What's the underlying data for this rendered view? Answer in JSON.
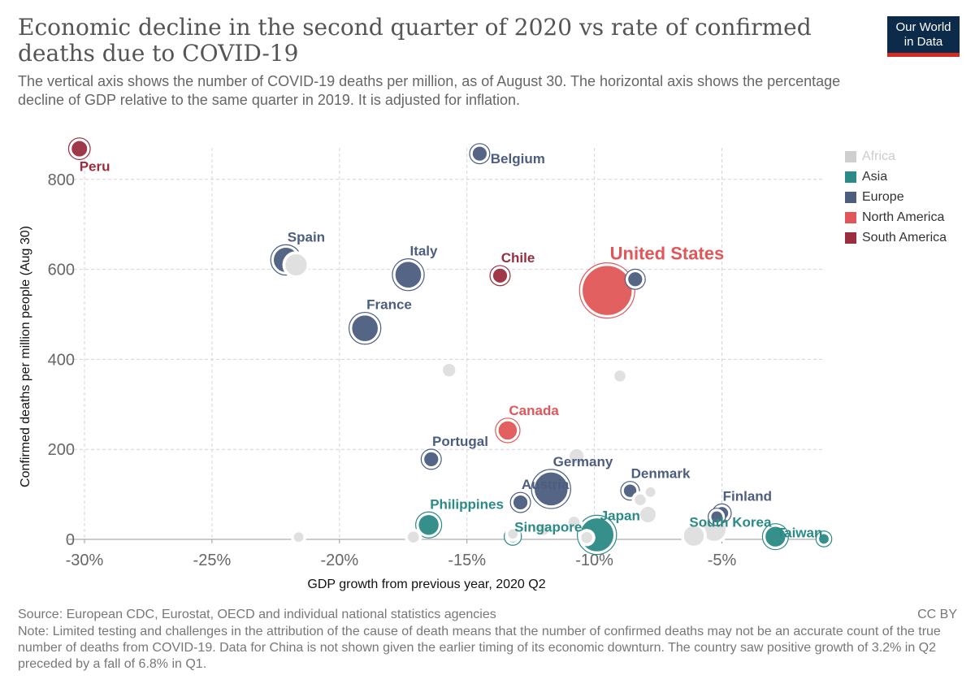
{
  "header": {
    "title": "Economic decline in the second quarter of 2020 vs rate of confirmed deaths due to COVID-19",
    "subtitle": "The vertical axis shows the number of COVID-19 deaths per million, as of August 30. The horizontal axis shows the percentage decline of GDP relative to the same quarter in 2019. It is adjusted for inflation.",
    "logo_line1": "Our World",
    "logo_line2": "in Data"
  },
  "footer": {
    "source": "Source: European CDC, Eurostat, OECD and individual national statistics agencies",
    "license": "CC BY",
    "note": "Note: Limited testing and challenges in the attribution of the cause of death means that the number of confirmed deaths may not be an accurate count of the true number of deaths from COVID-19. Data for China is not shown given the earlier timing of its economic downturn. The country saw positive growth of 3.2% in Q2 preceded by a fall of 6.8% in Q1."
  },
  "chart_data": {
    "type": "scatter",
    "xlabel": "GDP growth from previous year, 2020 Q2",
    "ylabel": "Confirmed deaths per million people (Aug 30)",
    "xlim": [
      -30.8,
      -1
    ],
    "ylim": [
      0,
      870
    ],
    "x_ticks": [
      -30,
      -25,
      -20,
      -15,
      -10,
      -5
    ],
    "x_tick_labels": [
      "-30%",
      "-25%",
      "-20%",
      "-15%",
      "-10%",
      "-5%"
    ],
    "y_ticks": [
      0,
      200,
      400,
      600,
      800
    ],
    "y_tick_labels": [
      "0",
      "200",
      "400",
      "600",
      "800"
    ],
    "grid": true,
    "legend_position": "right",
    "legend": [
      {
        "name": "Africa",
        "color": "#cfcfcf",
        "dimmed": true
      },
      {
        "name": "Asia",
        "color": "#2a8a85"
      },
      {
        "name": "Europe",
        "color": "#4c5d7e"
      },
      {
        "name": "North America",
        "color": "#e15759"
      },
      {
        "name": "South America",
        "color": "#9a2d3e"
      }
    ],
    "points": [
      {
        "label": "",
        "region": "Other",
        "x": -21.7,
        "y": 610,
        "size": 1.1
      },
      {
        "label": "",
        "region": "Other",
        "x": -15.7,
        "y": 376,
        "size": 0.5
      },
      {
        "label": "",
        "region": "Other",
        "x": -9.0,
        "y": 363,
        "size": 0.4
      },
      {
        "label": "",
        "region": "Other",
        "x": -10.7,
        "y": 185,
        "size": 0.6
      },
      {
        "label": "",
        "region": "Other",
        "x": -21.6,
        "y": 5,
        "size": 0.3
      },
      {
        "label": "",
        "region": "Other",
        "x": -17.1,
        "y": 5,
        "size": 0.4
      },
      {
        "label": "",
        "region": "Other",
        "x": -12.0,
        "y": 22,
        "size": 0.4
      },
      {
        "label": "",
        "region": "Other",
        "x": -10.8,
        "y": 38,
        "size": 0.4
      },
      {
        "label": "",
        "region": "Other",
        "x": -8.2,
        "y": 88,
        "size": 0.4
      },
      {
        "label": "",
        "region": "Other",
        "x": -7.8,
        "y": 105,
        "size": 0.3
      },
      {
        "label": "",
        "region": "Other",
        "x": -7.9,
        "y": 55,
        "size": 0.7
      },
      {
        "label": "",
        "region": "Other",
        "x": -6.1,
        "y": 8,
        "size": 1.0
      },
      {
        "label": "",
        "region": "Other",
        "x": -5.3,
        "y": 22,
        "size": 1.2
      },
      {
        "label": "",
        "region": "Other",
        "x": -13.2,
        "y": 12,
        "size": 0.3
      },
      {
        "label": "",
        "region": "Other",
        "x": -10.3,
        "y": 4,
        "size": 0.4
      },
      {
        "label": "Peru",
        "region": "South America",
        "x": -30.2,
        "y": 868,
        "size": 0.7
      },
      {
        "label": "Belgium",
        "region": "Europe",
        "x": -14.5,
        "y": 857,
        "size": 0.6
      },
      {
        "label": "Spain",
        "region": "Europe",
        "x": -22.1,
        "y": 621,
        "size": 1.3
      },
      {
        "label": "Italy",
        "region": "Europe",
        "x": -17.3,
        "y": 588,
        "size": 1.4
      },
      {
        "label": "Chile",
        "region": "South America",
        "x": -13.7,
        "y": 586,
        "size": 0.6
      },
      {
        "label": "United States",
        "region": "North America",
        "x": -9.5,
        "y": 553,
        "size": 3.0
      },
      {
        "label": "",
        "region": "Europe",
        "x": -8.4,
        "y": 578,
        "size": 0.6
      },
      {
        "label": "France",
        "region": "Europe",
        "x": -19.0,
        "y": 469,
        "size": 1.4
      },
      {
        "label": "Canada",
        "region": "North America",
        "x": -13.4,
        "y": 242,
        "size": 0.9
      },
      {
        "label": "Portugal",
        "region": "Europe",
        "x": -16.4,
        "y": 178,
        "size": 0.6
      },
      {
        "label": "Germany",
        "region": "Europe",
        "x": -11.7,
        "y": 112,
        "size": 1.9
      },
      {
        "label": "Austria",
        "region": "Europe",
        "x": -12.9,
        "y": 82,
        "size": 0.6
      },
      {
        "label": "Denmark",
        "region": "Europe",
        "x": -8.6,
        "y": 108,
        "size": 0.5
      },
      {
        "label": "Finland",
        "region": "Europe",
        "x": -5.0,
        "y": 58,
        "size": 0.5
      },
      {
        "label": "",
        "region": "Europe",
        "x": -5.2,
        "y": 50,
        "size": 0.4
      },
      {
        "label": "Philippines",
        "region": "Asia",
        "x": -16.5,
        "y": 32,
        "size": 1.0
      },
      {
        "label": "Singapore",
        "region": "Asia",
        "x": -13.2,
        "y": 6,
        "size": 0.4
      },
      {
        "label": "Japan",
        "region": "Asia",
        "x": -9.9,
        "y": 10,
        "size": 1.9
      },
      {
        "label": "South Korea",
        "region": "Asia",
        "x": -2.9,
        "y": 6,
        "size": 1.0
      },
      {
        "label": "Taiwan",
        "region": "Asia",
        "x": -1.0,
        "y": 1,
        "size": 0.3
      }
    ],
    "region_colors": {
      "Other": "#d5d5d5",
      "Asia": "#2a8a85",
      "Europe": "#4c5d7e",
      "North America": "#e15759",
      "South America": "#9a2d3e"
    }
  }
}
